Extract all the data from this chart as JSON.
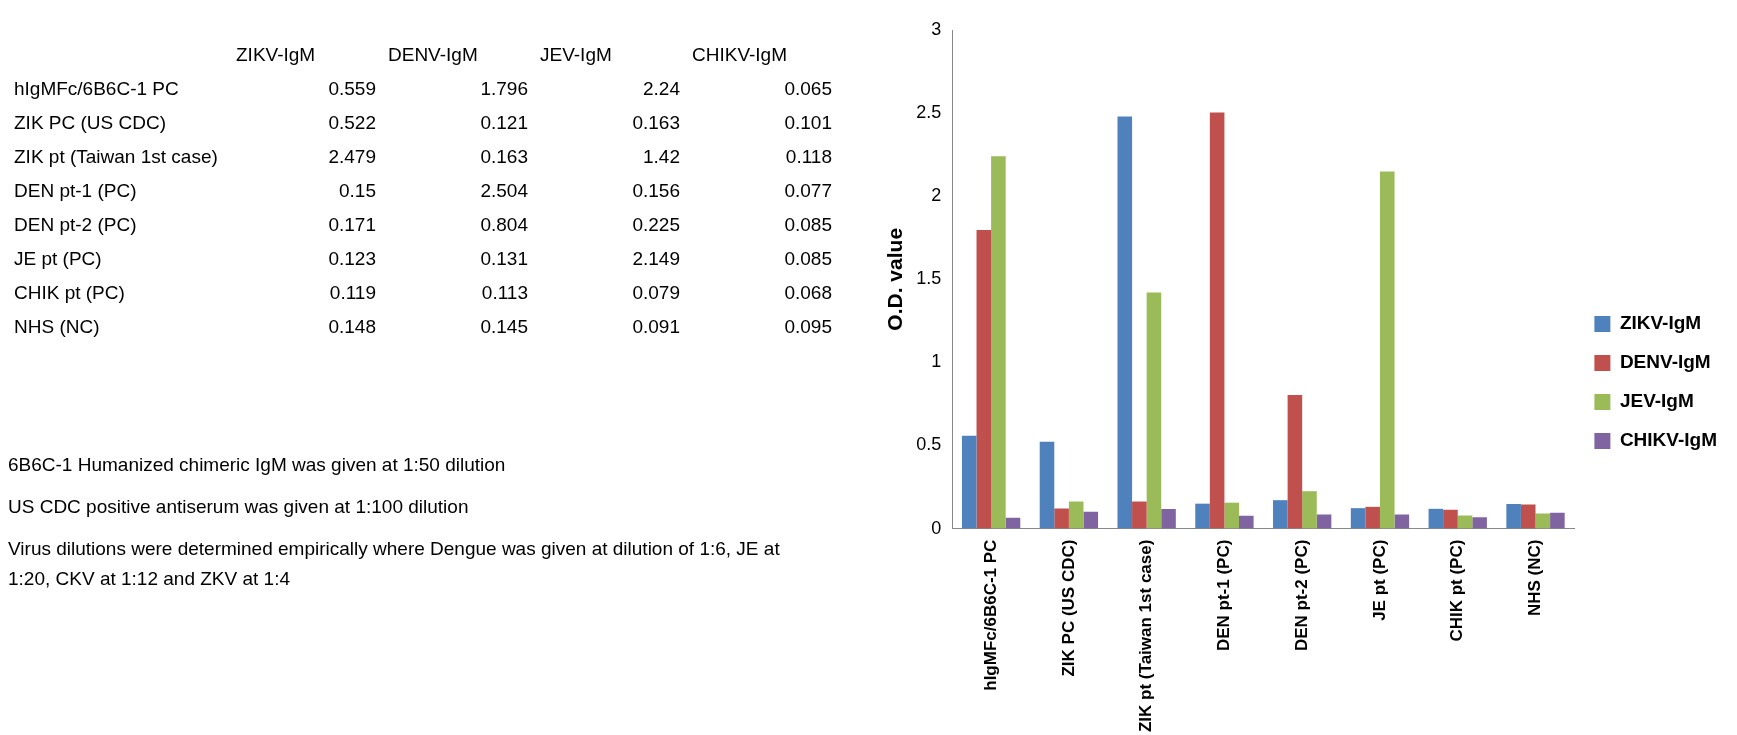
{
  "chart_data": [
    {
      "type": "other",
      "data_labels": true,
      "categories": [
        "hIgMFc/6B6C-1 PC",
        "ZIK PC (US CDC)",
        "ZIK pt (Taiwan 1st case)",
        "DEN pt-1 (PC)",
        "DEN pt-2 (PC)",
        "JE pt (PC)",
        "CHIK pt (PC)",
        "NHS (NC)"
      ],
      "series": [
        {
          "name": "ZIKV-IgM",
          "values": [
            0.559,
            0.522,
            2.479,
            0.15,
            0.171,
            0.123,
            0.119,
            0.148
          ]
        },
        {
          "name": "DENV-IgM",
          "values": [
            1.796,
            0.121,
            0.163,
            2.504,
            0.804,
            0.131,
            0.113,
            0.145
          ]
        },
        {
          "name": "JEV-IgM",
          "values": [
            2.24,
            0.163,
            1.42,
            0.156,
            0.225,
            2.149,
            0.079,
            0.091
          ]
        },
        {
          "name": "CHIKV-IgM",
          "values": [
            0.065,
            0.101,
            0.118,
            0.077,
            0.085,
            0.085,
            0.068,
            0.095
          ]
        }
      ],
      "annotations": [
        "6B6C-1 Humanized chimeric IgM was given at 1:50 dilution",
        "US CDC positive antiserum was given at 1:100 dilution",
        "Virus dilutions were determined empirically where Dengue was given at dilution of 1:6, JE at 1:20, CKV at 1:12 and ZKV at 1:4"
      ]
    },
    {
      "type": "bar",
      "ylabel": "O.D. value",
      "categories": [
        "hIgMFc/6B6C-1 PC",
        "ZIK PC (US CDC)",
        "ZIK pt (Taiwan 1st case)",
        "DEN pt-1 (PC)",
        "DEN pt-2 (PC)",
        "JE pt (PC)",
        "CHIK pt (PC)",
        "NHS (NC)"
      ],
      "series": [
        {
          "name": "ZIKV-IgM",
          "color": "#4f81bd",
          "values": [
            0.559,
            0.522,
            2.479,
            0.15,
            0.171,
            0.123,
            0.119,
            0.148
          ]
        },
        {
          "name": "DENV-IgM",
          "color": "#c0504d",
          "values": [
            1.796,
            0.121,
            0.163,
            2.504,
            0.804,
            0.131,
            0.113,
            0.145
          ]
        },
        {
          "name": "JEV-IgM",
          "color": "#9bbb59",
          "values": [
            2.24,
            0.163,
            1.42,
            0.156,
            0.225,
            2.149,
            0.079,
            0.091
          ]
        },
        {
          "name": "CHIKV-IgM",
          "color": "#8064a2",
          "values": [
            0.065,
            0.101,
            0.118,
            0.077,
            0.085,
            0.085,
            0.068,
            0.095
          ]
        }
      ],
      "ylim": [
        0,
        3
      ],
      "yticks": [
        0,
        0.5,
        1,
        1.5,
        2,
        2.5,
        3
      ],
      "grid": false,
      "legend": "right"
    }
  ]
}
